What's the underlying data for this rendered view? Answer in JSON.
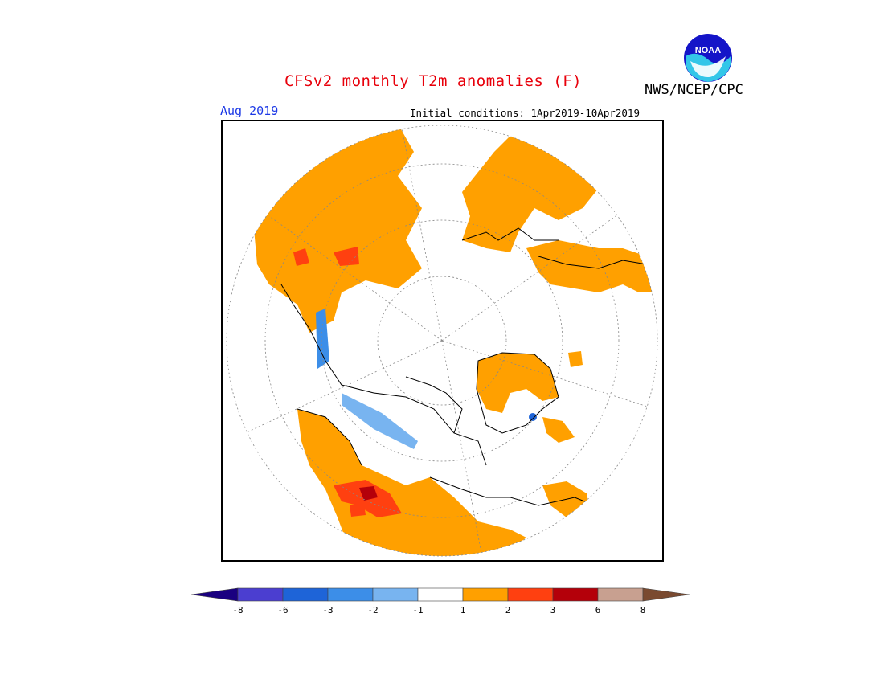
{
  "header": {
    "title": "CFSv2 monthly T2m anomalies (F)",
    "agency": "NWS/NCEP/CPC",
    "month": "Aug 2019",
    "initial_conditions": "Initial conditions: 1Apr2019-10Apr2019"
  },
  "logo": {
    "text": "NOAA",
    "icon": "noaa-logo-icon"
  },
  "map": {
    "projection": "north-polar-stereographic",
    "variable": "T2m anomaly",
    "units": "F"
  },
  "legend": {
    "ticks": [
      "-8",
      "-6",
      "-3",
      "-2",
      "-1",
      "1",
      "2",
      "3",
      "6",
      "8"
    ],
    "bins": [
      {
        "range": "< -8",
        "color": "#1a0080"
      },
      {
        "range": "-8 to -6",
        "color": "#4b3ed0"
      },
      {
        "range": "-6 to -3",
        "color": "#1e64d8"
      },
      {
        "range": "-3 to -2",
        "color": "#3c8ee8"
      },
      {
        "range": "-2 to -1",
        "color": "#78b4f0"
      },
      {
        "range": "-1 to 1",
        "color": "#ffffff"
      },
      {
        "range": "1 to 2",
        "color": "#ffa000"
      },
      {
        "range": "2 to 3",
        "color": "#ff4010"
      },
      {
        "range": "3 to 6",
        "color": "#b4000a"
      },
      {
        "range": "6 to 8",
        "color": "#c8a090"
      },
      {
        "range": "> 8",
        "color": "#7a4a30"
      }
    ]
  }
}
